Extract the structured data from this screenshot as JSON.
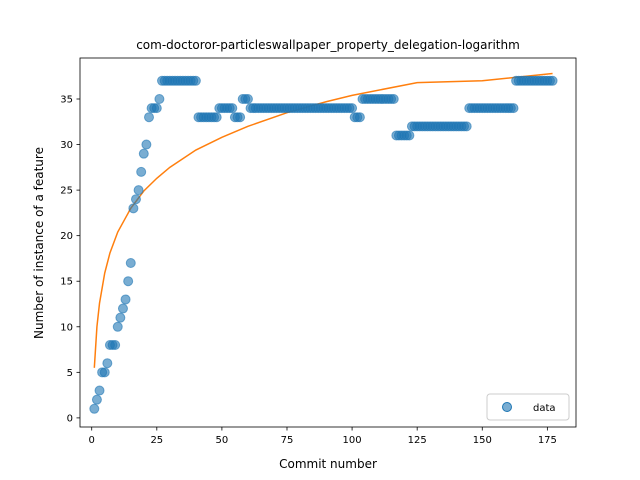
{
  "chart_data": {
    "type": "scatter",
    "title": "com-doctoror-particleswallpaper_property_delegation-logarithm",
    "xlabel": "Commit number",
    "ylabel": "Number of instance of a feature",
    "xlim": [
      -4.5,
      186
    ],
    "ylim": [
      -1,
      39.5
    ],
    "xticks": [
      0,
      25,
      50,
      75,
      100,
      125,
      150,
      175
    ],
    "yticks": [
      0,
      5,
      10,
      15,
      20,
      25,
      30,
      35
    ],
    "legend": {
      "position": "lower-right",
      "entries": [
        "data"
      ]
    },
    "colors": {
      "data": "#1f77b4",
      "fit": "#ff7f0e"
    },
    "series": [
      {
        "name": "data",
        "kind": "points",
        "points": [
          [
            1,
            1
          ],
          [
            2,
            2
          ],
          [
            3,
            3
          ],
          [
            4,
            5
          ],
          [
            5,
            5
          ],
          [
            6,
            6
          ],
          [
            7,
            8
          ],
          [
            8,
            8
          ],
          [
            9,
            8
          ],
          [
            10,
            10
          ],
          [
            11,
            11
          ],
          [
            12,
            12
          ],
          [
            13,
            13
          ],
          [
            14,
            15
          ],
          [
            15,
            17
          ],
          [
            16,
            23
          ],
          [
            17,
            24
          ],
          [
            18,
            25
          ],
          [
            19,
            27
          ],
          [
            20,
            29
          ],
          [
            21,
            30
          ],
          [
            22,
            33
          ],
          [
            23,
            34
          ],
          [
            24,
            34
          ],
          [
            25,
            34
          ],
          [
            26,
            35
          ],
          [
            27,
            37
          ],
          [
            28,
            37
          ],
          [
            29,
            37
          ],
          [
            30,
            37
          ],
          [
            31,
            37
          ],
          [
            32,
            37
          ],
          [
            33,
            37
          ],
          [
            34,
            37
          ],
          [
            35,
            37
          ],
          [
            36,
            37
          ],
          [
            37,
            37
          ],
          [
            38,
            37
          ],
          [
            39,
            37
          ],
          [
            40,
            37
          ],
          [
            41,
            33
          ],
          [
            42,
            33
          ],
          [
            43,
            33
          ],
          [
            44,
            33
          ],
          [
            45,
            33
          ],
          [
            46,
            33
          ],
          [
            47,
            33
          ],
          [
            48,
            33
          ],
          [
            49,
            34
          ],
          [
            50,
            34
          ],
          [
            51,
            34
          ],
          [
            52,
            34
          ],
          [
            53,
            34
          ],
          [
            54,
            34
          ],
          [
            55,
            33
          ],
          [
            56,
            33
          ],
          [
            57,
            33
          ],
          [
            58,
            35
          ],
          [
            59,
            35
          ],
          [
            60,
            35
          ],
          [
            61,
            34
          ],
          [
            62,
            34
          ],
          [
            63,
            34
          ],
          [
            64,
            34
          ],
          [
            65,
            34
          ],
          [
            66,
            34
          ],
          [
            67,
            34
          ],
          [
            68,
            34
          ],
          [
            69,
            34
          ],
          [
            70,
            34
          ],
          [
            71,
            34
          ],
          [
            72,
            34
          ],
          [
            73,
            34
          ],
          [
            74,
            34
          ],
          [
            75,
            34
          ],
          [
            76,
            34
          ],
          [
            77,
            34
          ],
          [
            78,
            34
          ],
          [
            79,
            34
          ],
          [
            80,
            34
          ],
          [
            81,
            34
          ],
          [
            82,
            34
          ],
          [
            83,
            34
          ],
          [
            84,
            34
          ],
          [
            85,
            34
          ],
          [
            86,
            34
          ],
          [
            87,
            34
          ],
          [
            88,
            34
          ],
          [
            89,
            34
          ],
          [
            90,
            34
          ],
          [
            91,
            34
          ],
          [
            92,
            34
          ],
          [
            93,
            34
          ],
          [
            94,
            34
          ],
          [
            95,
            34
          ],
          [
            96,
            34
          ],
          [
            97,
            34
          ],
          [
            98,
            34
          ],
          [
            99,
            34
          ],
          [
            100,
            34
          ],
          [
            101,
            33
          ],
          [
            102,
            33
          ],
          [
            103,
            33
          ],
          [
            104,
            35
          ],
          [
            105,
            35
          ],
          [
            106,
            35
          ],
          [
            107,
            35
          ],
          [
            108,
            35
          ],
          [
            109,
            35
          ],
          [
            110,
            35
          ],
          [
            111,
            35
          ],
          [
            112,
            35
          ],
          [
            113,
            35
          ],
          [
            114,
            35
          ],
          [
            115,
            35
          ],
          [
            116,
            35
          ],
          [
            117,
            31
          ],
          [
            118,
            31
          ],
          [
            119,
            31
          ],
          [
            120,
            31
          ],
          [
            121,
            31
          ],
          [
            122,
            31
          ],
          [
            123,
            32
          ],
          [
            124,
            32
          ],
          [
            125,
            32
          ],
          [
            126,
            32
          ],
          [
            127,
            32
          ],
          [
            128,
            32
          ],
          [
            129,
            32
          ],
          [
            130,
            32
          ],
          [
            131,
            32
          ],
          [
            132,
            32
          ],
          [
            133,
            32
          ],
          [
            134,
            32
          ],
          [
            135,
            32
          ],
          [
            136,
            32
          ],
          [
            137,
            32
          ],
          [
            138,
            32
          ],
          [
            139,
            32
          ],
          [
            140,
            32
          ],
          [
            141,
            32
          ],
          [
            142,
            32
          ],
          [
            143,
            32
          ],
          [
            144,
            32
          ],
          [
            145,
            34
          ],
          [
            146,
            34
          ],
          [
            147,
            34
          ],
          [
            148,
            34
          ],
          [
            149,
            34
          ],
          [
            150,
            34
          ],
          [
            151,
            34
          ],
          [
            152,
            34
          ],
          [
            153,
            34
          ],
          [
            154,
            34
          ],
          [
            155,
            34
          ],
          [
            156,
            34
          ],
          [
            157,
            34
          ],
          [
            158,
            34
          ],
          [
            159,
            34
          ],
          [
            160,
            34
          ],
          [
            161,
            34
          ],
          [
            162,
            34
          ],
          [
            163,
            37
          ],
          [
            164,
            37
          ],
          [
            165,
            37
          ],
          [
            166,
            37
          ],
          [
            167,
            37
          ],
          [
            168,
            37
          ],
          [
            169,
            37
          ],
          [
            170,
            37
          ],
          [
            171,
            37
          ],
          [
            172,
            37
          ],
          [
            173,
            37
          ],
          [
            174,
            37
          ],
          [
            175,
            37
          ],
          [
            176,
            37
          ],
          [
            177,
            37
          ]
        ]
      },
      {
        "kind": "logarithmic-fit",
        "points": [
          [
            1,
            5.5
          ],
          [
            2,
            10.0
          ],
          [
            3,
            12.6
          ],
          [
            5,
            15.9
          ],
          [
            7,
            18.1
          ],
          [
            10,
            20.4
          ],
          [
            15,
            23.0
          ],
          [
            20,
            24.9
          ],
          [
            25,
            26.3
          ],
          [
            30,
            27.5
          ],
          [
            40,
            29.4
          ],
          [
            50,
            30.8
          ],
          [
            60,
            32.0
          ],
          [
            75,
            33.5
          ],
          [
            90,
            34.7
          ],
          [
            100,
            35.4
          ],
          [
            125,
            36.8
          ],
          [
            150,
            37.0
          ],
          [
            177,
            37.8
          ]
        ]
      }
    ]
  }
}
